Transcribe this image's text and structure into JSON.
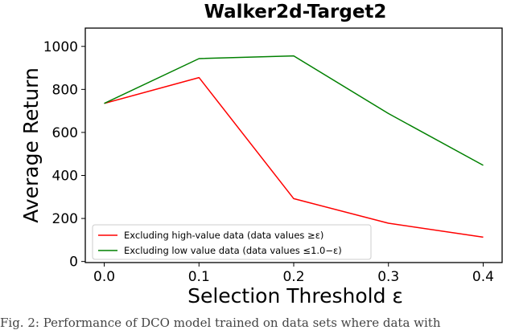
{
  "chart_data": {
    "type": "line",
    "title": "Walker2d-Target2",
    "xlabel": "Selection Threshold ε",
    "ylabel": "Average Return",
    "x": [
      0.0,
      0.1,
      0.2,
      0.3,
      0.4
    ],
    "xticks": [
      "0.0",
      "0.1",
      "0.2",
      "0.3",
      "0.4"
    ],
    "yticks": [
      "0",
      "200",
      "400",
      "600",
      "800",
      "1000"
    ],
    "xlim": [
      -0.02,
      0.42
    ],
    "ylim": [
      -5,
      1085
    ],
    "grid": false,
    "legend_position": "lower-left",
    "series": [
      {
        "name": "Excluding high-value data (data values ≥ε)",
        "color": "#ff0000",
        "values": [
          735,
          855,
          292,
          178,
          113
        ]
      },
      {
        "name": "Excluding low value data (data values ≤1.0−ε)",
        "color": "#008000",
        "values": [
          735,
          943,
          956,
          688,
          447
        ]
      }
    ]
  },
  "caption": "Fig. 2: Performance of DCO model trained on data sets where data with"
}
